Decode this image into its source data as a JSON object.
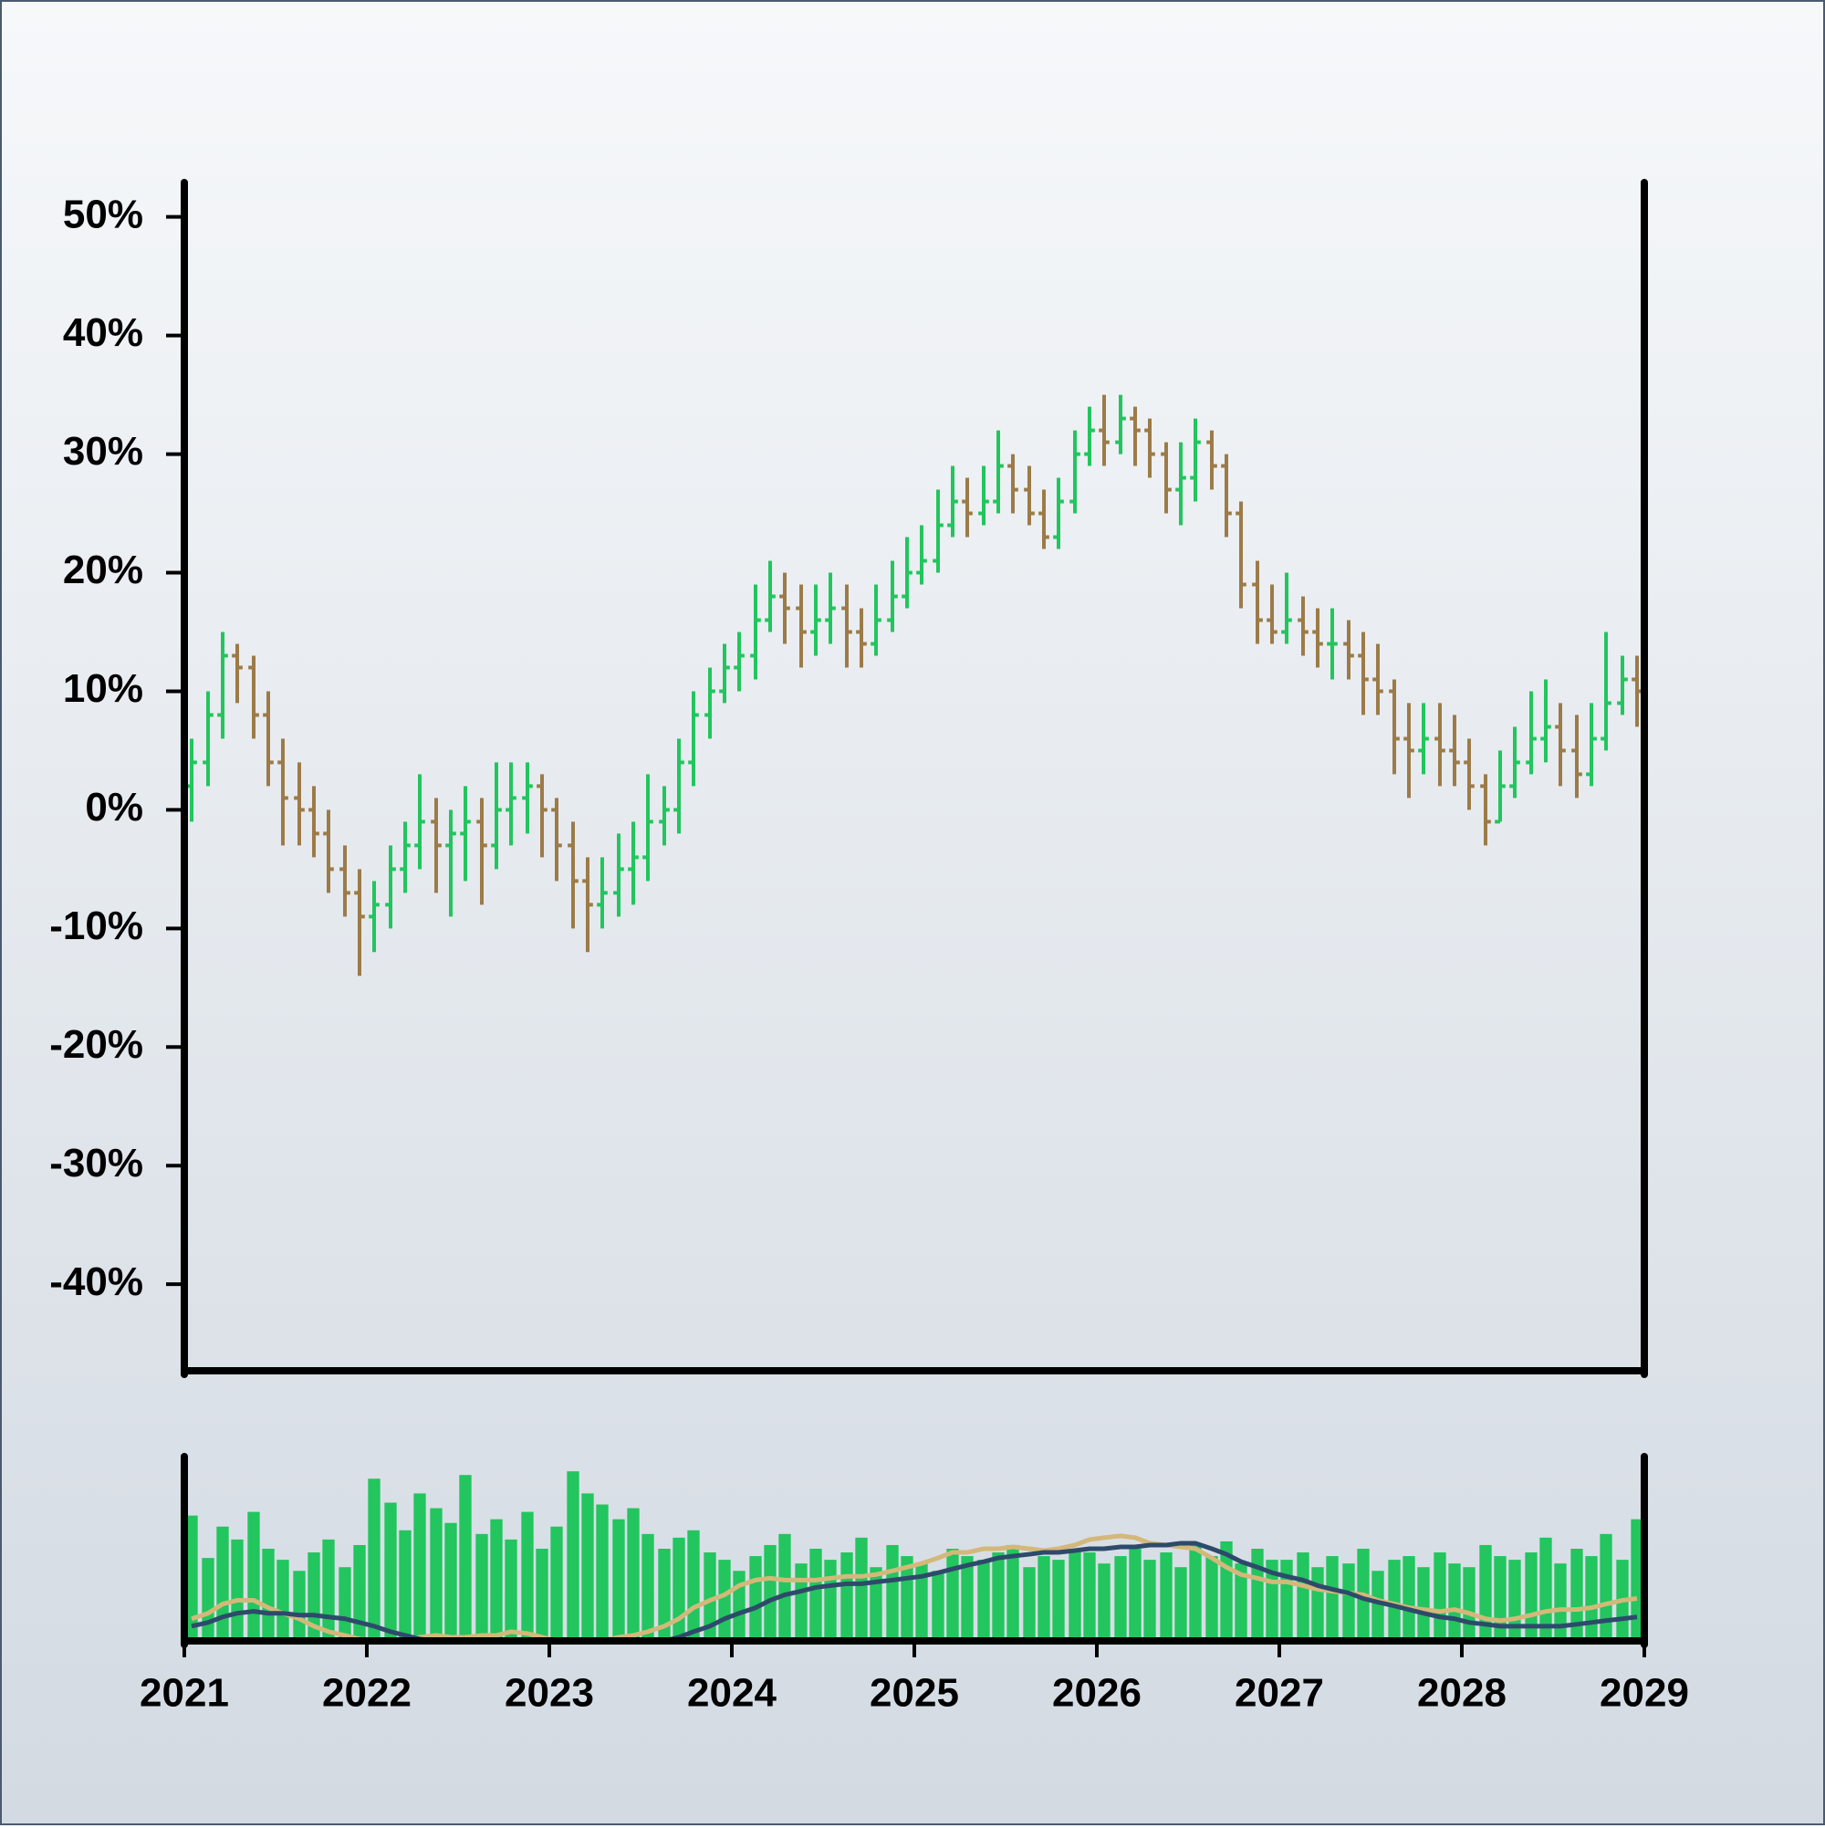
{
  "chart_data": [
    {
      "type": "ohlc",
      "x": [
        2021.04,
        2021.13,
        2021.21,
        2021.29,
        2021.38,
        2021.46,
        2021.54,
        2021.63,
        2021.71,
        2021.79,
        2021.88,
        2021.96,
        2022.04,
        2022.13,
        2022.21,
        2022.29,
        2022.38,
        2022.46,
        2022.54,
        2022.63,
        2022.71,
        2022.79,
        2022.88,
        2022.96,
        2023.04,
        2023.13,
        2023.21,
        2023.29,
        2023.38,
        2023.46,
        2023.54,
        2023.63,
        2023.71,
        2023.79,
        2023.88,
        2023.96,
        2024.04,
        2024.13,
        2024.21,
        2024.29,
        2024.38,
        2024.46,
        2024.54,
        2024.63,
        2024.71,
        2024.79,
        2024.88,
        2024.96,
        2025.04,
        2025.13,
        2025.21,
        2025.29,
        2025.38,
        2025.46,
        2025.54,
        2025.63,
        2025.71,
        2025.79,
        2025.88,
        2025.96,
        2026.04,
        2026.13,
        2026.21,
        2026.29,
        2026.38,
        2026.46,
        2026.54,
        2026.63,
        2026.71,
        2026.79,
        2026.88,
        2026.96,
        2027.04,
        2027.13,
        2027.21,
        2027.29,
        2027.38,
        2027.46,
        2027.54,
        2027.63,
        2027.71,
        2027.79,
        2027.88,
        2027.96,
        2028.04,
        2028.13,
        2028.21,
        2028.29,
        2028.38,
        2028.46,
        2028.54,
        2028.63,
        2028.71,
        2028.79,
        2028.88,
        2028.96
      ],
      "open": [
        2,
        4,
        8,
        13,
        12,
        8,
        4,
        1,
        0,
        -2,
        -5,
        -7,
        -9,
        -8,
        -5,
        -3,
        -1,
        -3,
        -2,
        -1,
        -3,
        0,
        1,
        2,
        0,
        -3,
        -6,
        -8,
        -7,
        -5,
        -4,
        -1,
        0,
        4,
        8,
        10,
        12,
        13,
        16,
        18,
        17,
        15,
        16,
        17,
        15,
        14,
        16,
        18,
        20,
        21,
        24,
        26,
        25,
        26,
        29,
        27,
        25,
        23,
        26,
        30,
        32,
        31,
        33,
        32,
        30,
        27,
        28,
        31,
        29,
        25,
        19,
        16,
        15,
        16,
        15,
        14,
        14,
        13,
        11,
        10,
        6,
        5,
        6,
        5,
        4,
        2,
        -1,
        2,
        4,
        6,
        7,
        5,
        3,
        6,
        9,
        11
      ],
      "high": [
        6,
        10,
        15,
        14,
        13,
        10,
        6,
        4,
        2,
        0,
        -3,
        -5,
        -6,
        -3,
        -1,
        3,
        1,
        0,
        2,
        1,
        4,
        4,
        4,
        3,
        1,
        -1,
        -4,
        -4,
        -2,
        -1,
        3,
        2,
        6,
        10,
        12,
        14,
        15,
        19,
        21,
        20,
        19,
        19,
        20,
        19,
        17,
        19,
        21,
        23,
        24,
        27,
        29,
        28,
        29,
        32,
        30,
        29,
        27,
        28,
        32,
        34,
        35,
        35,
        34,
        33,
        31,
        31,
        33,
        32,
        30,
        26,
        21,
        19,
        20,
        18,
        17,
        17,
        16,
        15,
        14,
        11,
        9,
        9,
        9,
        8,
        6,
        3,
        5,
        7,
        10,
        11,
        9,
        8,
        9,
        15,
        13,
        13
      ],
      "low": [
        -1,
        2,
        6,
        9,
        6,
        2,
        -3,
        -3,
        -4,
        -7,
        -9,
        -14,
        -12,
        -10,
        -7,
        -5,
        -7,
        -9,
        -6,
        -8,
        -5,
        -3,
        -2,
        -4,
        -6,
        -10,
        -12,
        -10,
        -9,
        -8,
        -6,
        -3,
        -2,
        2,
        6,
        9,
        10,
        11,
        15,
        14,
        12,
        13,
        14,
        12,
        12,
        13,
        15,
        17,
        19,
        20,
        23,
        23,
        24,
        25,
        25,
        24,
        22,
        22,
        25,
        29,
        29,
        30,
        29,
        28,
        25,
        24,
        26,
        27,
        23,
        17,
        14,
        14,
        14,
        13,
        12,
        11,
        11,
        8,
        8,
        3,
        1,
        3,
        2,
        2,
        0,
        -3,
        -1,
        1,
        3,
        4,
        2,
        1,
        2,
        5,
        8,
        7
      ],
      "close": [
        4,
        8,
        13,
        12,
        8,
        4,
        1,
        0,
        -2,
        -5,
        -7,
        -9,
        -8,
        -5,
        -3,
        -1,
        -3,
        -2,
        -1,
        -3,
        0,
        1,
        2,
        0,
        -3,
        -6,
        -8,
        -7,
        -5,
        -4,
        -1,
        0,
        4,
        8,
        10,
        12,
        13,
        16,
        18,
        17,
        15,
        16,
        17,
        15,
        14,
        16,
        18,
        20,
        21,
        24,
        26,
        25,
        26,
        29,
        27,
        25,
        23,
        26,
        30,
        32,
        31,
        33,
        32,
        30,
        27,
        28,
        31,
        29,
        25,
        19,
        16,
        15,
        16,
        15,
        14,
        14,
        13,
        11,
        10,
        6,
        5,
        6,
        5,
        4,
        2,
        -1,
        2,
        4,
        6,
        7,
        5,
        3,
        6,
        9,
        11,
        10
      ],
      "up_color": "#22c55e",
      "down_color": "#9c7b48",
      "xlim": [
        2021,
        2029
      ],
      "ylim": [
        -47.3,
        52.9
      ],
      "yticks": [
        {
          "value": 50,
          "label": "50%"
        },
        {
          "value": 40,
          "label": "40%"
        },
        {
          "value": 30,
          "label": "30%"
        },
        {
          "value": 20,
          "label": "20%"
        },
        {
          "value": 10,
          "label": "10%"
        },
        {
          "value": 0,
          "label": "0%"
        },
        {
          "value": -10,
          "label": "-10%"
        },
        {
          "value": -20,
          "label": "-20%"
        },
        {
          "value": -30,
          "label": "-30%"
        },
        {
          "value": -40,
          "label": "-40%"
        }
      ]
    },
    {
      "type": "volume",
      "x": [
        2021.04,
        2021.13,
        2021.21,
        2021.29,
        2021.38,
        2021.46,
        2021.54,
        2021.63,
        2021.71,
        2021.79,
        2021.88,
        2021.96,
        2022.04,
        2022.13,
        2022.21,
        2022.29,
        2022.38,
        2022.46,
        2022.54,
        2022.63,
        2022.71,
        2022.79,
        2022.88,
        2022.96,
        2023.04,
        2023.13,
        2023.21,
        2023.29,
        2023.38,
        2023.46,
        2023.54,
        2023.63,
        2023.71,
        2023.79,
        2023.88,
        2023.96,
        2024.04,
        2024.13,
        2024.21,
        2024.29,
        2024.38,
        2024.46,
        2024.54,
        2024.63,
        2024.71,
        2024.79,
        2024.88,
        2024.96,
        2025.04,
        2025.13,
        2025.21,
        2025.29,
        2025.38,
        2025.46,
        2025.54,
        2025.63,
        2025.71,
        2025.79,
        2025.88,
        2025.96,
        2026.04,
        2026.13,
        2026.21,
        2026.29,
        2026.38,
        2026.46,
        2026.54,
        2026.63,
        2026.71,
        2026.79,
        2026.88,
        2026.96,
        2027.04,
        2027.13,
        2027.21,
        2027.29,
        2027.38,
        2027.46,
        2027.54,
        2027.63,
        2027.71,
        2027.79,
        2027.88,
        2027.96,
        2028.04,
        2028.13,
        2028.21,
        2028.29,
        2028.38,
        2028.46,
        2028.54,
        2028.63,
        2028.71,
        2028.79,
        2028.88,
        2028.96
      ],
      "values": [
        68,
        45,
        62,
        55,
        70,
        50,
        44,
        38,
        48,
        55,
        40,
        52,
        88,
        75,
        60,
        80,
        72,
        64,
        90,
        58,
        66,
        55,
        70,
        50,
        62,
        92,
        80,
        74,
        66,
        72,
        58,
        50,
        56,
        60,
        48,
        44,
        38,
        46,
        52,
        58,
        42,
        50,
        44,
        48,
        56,
        40,
        52,
        46,
        42,
        38,
        50,
        46,
        44,
        48,
        52,
        40,
        46,
        44,
        50,
        48,
        42,
        46,
        50,
        44,
        48,
        40,
        52,
        46,
        54,
        42,
        50,
        44,
        44,
        48,
        40,
        46,
        42,
        50,
        38,
        44,
        46,
        40,
        48,
        42,
        40,
        52,
        46,
        44,
        48,
        56,
        42,
        50,
        46,
        58,
        44,
        66
      ],
      "color": "#22c55e",
      "lines": [
        {
          "color": "#d4b87a",
          "values": [
            12,
            15,
            20,
            22,
            22,
            18,
            15,
            12,
            8,
            5,
            3,
            1,
            0,
            0,
            0,
            2,
            3,
            2,
            2,
            3,
            3,
            5,
            4,
            2,
            0,
            0,
            0,
            0,
            2,
            3,
            5,
            8,
            12,
            18,
            22,
            25,
            30,
            33,
            34,
            33,
            33,
            33,
            34,
            35,
            35,
            36,
            38,
            40,
            42,
            45,
            48,
            48,
            50,
            50,
            51,
            50,
            49,
            50,
            52,
            55,
            56,
            57,
            56,
            53,
            52,
            51,
            50,
            45,
            40,
            36,
            34,
            32,
            32,
            30,
            28,
            27,
            26,
            25,
            22,
            20,
            18,
            17,
            16,
            17,
            15,
            12,
            11,
            12,
            14,
            16,
            17,
            17,
            18,
            20,
            22,
            23
          ]
        },
        {
          "color": "#2e4a6b",
          "values": [
            8,
            10,
            13,
            15,
            16,
            15,
            15,
            14,
            14,
            13,
            12,
            10,
            8,
            5,
            3,
            1,
            0,
            0,
            0,
            0,
            0,
            0,
            0,
            0,
            0,
            0,
            0,
            0,
            0,
            0,
            0,
            0,
            2,
            5,
            8,
            12,
            15,
            18,
            22,
            25,
            27,
            29,
            30,
            31,
            31,
            32,
            33,
            34,
            35,
            37,
            39,
            41,
            43,
            45,
            46,
            47,
            48,
            48,
            49,
            50,
            50,
            51,
            51,
            52,
            52,
            53,
            53,
            50,
            47,
            43,
            40,
            37,
            35,
            33,
            30,
            28,
            26,
            23,
            21,
            19,
            17,
            15,
            13,
            12,
            10,
            9,
            8,
            8,
            8,
            8,
            8,
            9,
            10,
            11,
            12,
            13
          ]
        }
      ],
      "xlim": [
        2021,
        2029
      ],
      "ylim": [
        0,
        100
      ],
      "xticks": [
        2021,
        2022,
        2023,
        2024,
        2025,
        2026,
        2027,
        2028,
        2029
      ]
    }
  ]
}
